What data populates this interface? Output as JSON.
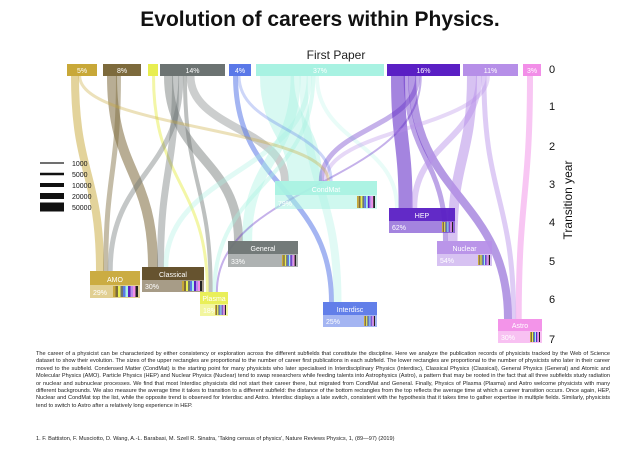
{
  "title": "Evolution of careers within Physics.",
  "first_paper_label": "First Paper",
  "axis_label": "Transition year",
  "axis_ticks": [
    "0",
    "1",
    "2",
    "3",
    "4",
    "5",
    "6",
    "7"
  ],
  "legend": [
    "1000",
    "5000",
    "10000",
    "20000",
    "50000"
  ],
  "first_paper_bars": [
    {
      "id": "amo",
      "label": "5%",
      "color": "#c8a838"
    },
    {
      "id": "classical",
      "label": "8%",
      "color": "#7d6a3c"
    },
    {
      "id": "plasma",
      "label": "",
      "color": "#e8ee50"
    },
    {
      "id": "general",
      "label": "14%",
      "color": "#6c7372"
    },
    {
      "id": "interdisc",
      "label": "4%",
      "color": "#5a78e8"
    },
    {
      "id": "condmat",
      "label": "37%",
      "color": "#a8f2e2"
    },
    {
      "id": "hep",
      "label": "16%",
      "color": "#5a1fc4"
    },
    {
      "id": "nuclear",
      "label": "11%",
      "color": "#b68fe8"
    },
    {
      "id": "astro",
      "label": "3%",
      "color": "#f28ee8"
    }
  ],
  "nodes": [
    {
      "id": "condmat",
      "name": "CondMat",
      "pct": "79%",
      "color": "#a8f2e2"
    },
    {
      "id": "hep",
      "name": "HEP",
      "pct": "62%",
      "color": "#5a1fc4"
    },
    {
      "id": "general",
      "name": "General",
      "pct": "33%",
      "color": "#6c7372"
    },
    {
      "id": "nuclear",
      "name": "Nuclear",
      "pct": "54%",
      "color": "#b68fe8"
    },
    {
      "id": "classical",
      "name": "Classical",
      "pct": "30%",
      "color": "#5e4a24"
    },
    {
      "id": "amo",
      "name": "AMO",
      "pct": "29%",
      "color": "#c8a838"
    },
    {
      "id": "plasma",
      "name": "Plasma",
      "pct": "18%",
      "color": "#e8ee50"
    },
    {
      "id": "interdisc",
      "name": "Interdisc",
      "pct": "25%",
      "color": "#5a78e8"
    },
    {
      "id": "astro",
      "name": "Astro",
      "pct": "30%",
      "color": "#f28ee8"
    }
  ],
  "caption": "The career of a physicist can be characterized by either consistency or exploration across the different subfields that constitute the discipline. Here we analyze the publication records of physicists tracked by the Web of Science dataset to show their evolution. The sizes of the upper rectangles are proportional to the number of career first publications in each subfield. The lower rectangles are proportional to the number of physicists who later in their career moved to the subfield. Condensed Matter (CondMat) is the starting point for many physicists who later specialised in Interdisciplinary Physics (Interdisc), Classical Physics (Classical), General Physics (General) and Atomic and Molecular Physics (AMO). Particle Physics (HEP) and Nuclear Physics (Nuclear) tend to swap researchers while feeding talents into Astrophysics (Astro), a pattern that may be rooted in the fact that all three subfields study radiation or nuclear and subnuclear processes. We find that most Interdisc physicists did not start their career there, but migrated from CondMat and General. Finally, Physics of Plasma (Plasma) and Astro welcome physicists with many different backgrounds. We also measure the average time it takes to transition to a different subfield: the distance of the bottom rectangles from the top reflects the average time at which a career transition occurs. Once again, HEP, Nuclear and CondMat top the list, while the opposite trend is observed for Interdisc and Astro. Interdisc displays a late switch, consistent with the hypothesis that it takes time to gather expertise in multiple fields. Similarly, physicists tend to switch to Astro after a relatively long experience in HEP.",
  "reference": "1. F. Battiston, F. Musciotto, D. Wang, A.-L. Barabasi, M. Szell R. Sinatra, 'Taking census of physics', Nature Reviews Physics, 1, (89—97) (2019)"
}
